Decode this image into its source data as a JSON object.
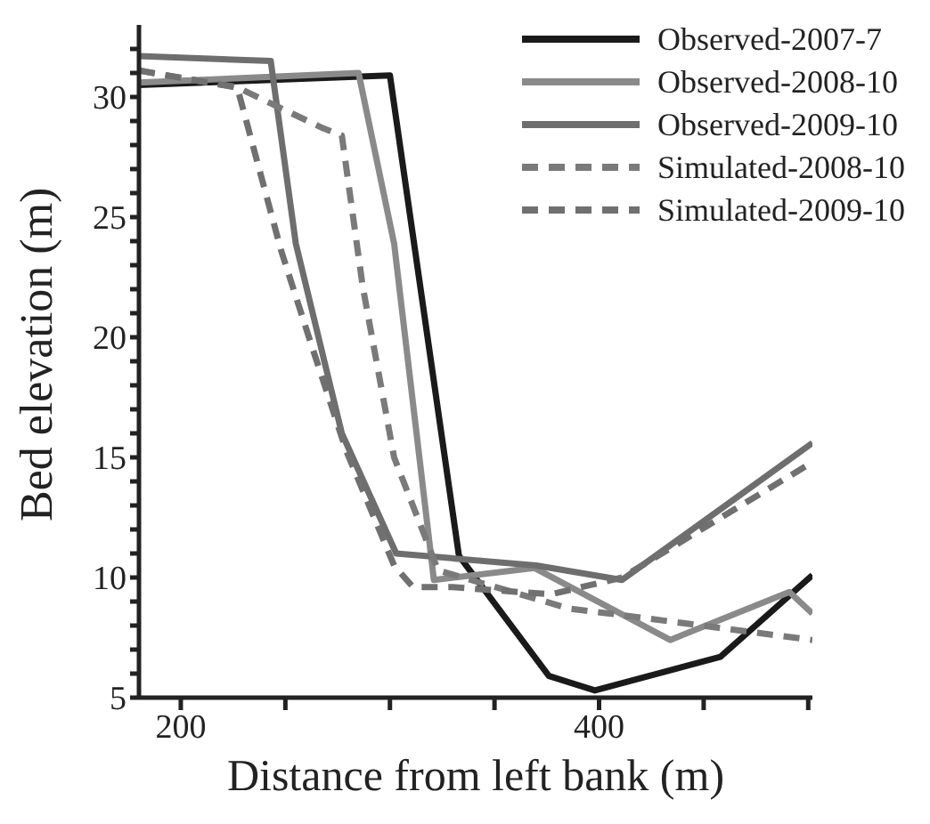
{
  "chart_data": {
    "type": "line",
    "xlabel": "Distance from left bank (m)",
    "ylabel": "Bed elevation (m)",
    "xlim": [
      180,
      502
    ],
    "ylim": [
      5,
      33
    ],
    "xticks": [
      200,
      {
        "value": 250,
        "label": null
      },
      {
        "value": 300,
        "label": null
      },
      {
        "value": 350,
        "label": null
      },
      400,
      {
        "value": 450,
        "label": null
      },
      {
        "value": 500,
        "label": null
      }
    ],
    "yticks": [
      5,
      {
        "value": 6,
        "label": null
      },
      {
        "value": 7,
        "label": null
      },
      {
        "value": 8,
        "label": null
      },
      {
        "value": 9,
        "label": null
      },
      10,
      {
        "value": 11,
        "label": null
      },
      {
        "value": 12,
        "label": null
      },
      {
        "value": 13,
        "label": null
      },
      {
        "value": 14,
        "label": null
      },
      15,
      {
        "value": 16,
        "label": null
      },
      {
        "value": 17,
        "label": null
      },
      {
        "value": 18,
        "label": null
      },
      {
        "value": 19,
        "label": null
      },
      20,
      {
        "value": 21,
        "label": null
      },
      {
        "value": 22,
        "label": null
      },
      {
        "value": 23,
        "label": null
      },
      {
        "value": 24,
        "label": null
      },
      25,
      {
        "value": 26,
        "label": null
      },
      {
        "value": 27,
        "label": null
      },
      {
        "value": 28,
        "label": null
      },
      {
        "value": 29,
        "label": null
      },
      30,
      {
        "value": 31,
        "label": null
      },
      {
        "value": 32,
        "label": null
      }
    ],
    "grid": false,
    "legend": "top right",
    "marker": "none",
    "series": [
      {
        "name": "Observed-2007-7",
        "color": "#1a1a1a",
        "line_style": "solid",
        "x": [
          180,
          300,
          333,
          376,
          398,
          458,
          502
        ],
        "values": [
          30.5,
          30.9,
          10.9,
          5.9,
          5.3,
          6.7,
          10.1
        ]
      },
      {
        "name": "Observed-2008-10",
        "color": "#8a8a8a",
        "line_style": "solid",
        "x": [
          180,
          285,
          302,
          321,
          369,
          434,
          491,
          502
        ],
        "values": [
          30.6,
          31.0,
          23.9,
          9.9,
          10.4,
          7.4,
          9.4,
          8.5
        ]
      },
      {
        "name": "Observed-2009-10",
        "color": "#6e6e6e",
        "line_style": "solid",
        "x": [
          180,
          243,
          255,
          277,
          303,
          370,
          411,
          502
        ],
        "values": [
          31.7,
          31.5,
          23.9,
          16,
          11,
          10.5,
          9.9,
          15.6
        ]
      },
      {
        "name": "Simulated-2008-10",
        "color": "#7a7a7a",
        "line_style": "dashed",
        "x": [
          180,
          227,
          268,
          277,
          287,
          302,
          323,
          386,
          405,
          502
        ],
        "values": [
          31.1,
          30.4,
          28.7,
          28.4,
          22.1,
          15,
          10.3,
          8.7,
          8.5,
          7.4
        ]
      },
      {
        "name": "Simulated-2009-10",
        "color": "#707070",
        "line_style": "dashed",
        "x": [
          180,
          227,
          248,
          262,
          279,
          302,
          311,
          330,
          377,
          411,
          502
        ],
        "values": [
          31.1,
          30.4,
          23.6,
          19.8,
          15.3,
          10.5,
          9.6,
          9.6,
          9.3,
          10,
          14.8
        ]
      }
    ]
  }
}
